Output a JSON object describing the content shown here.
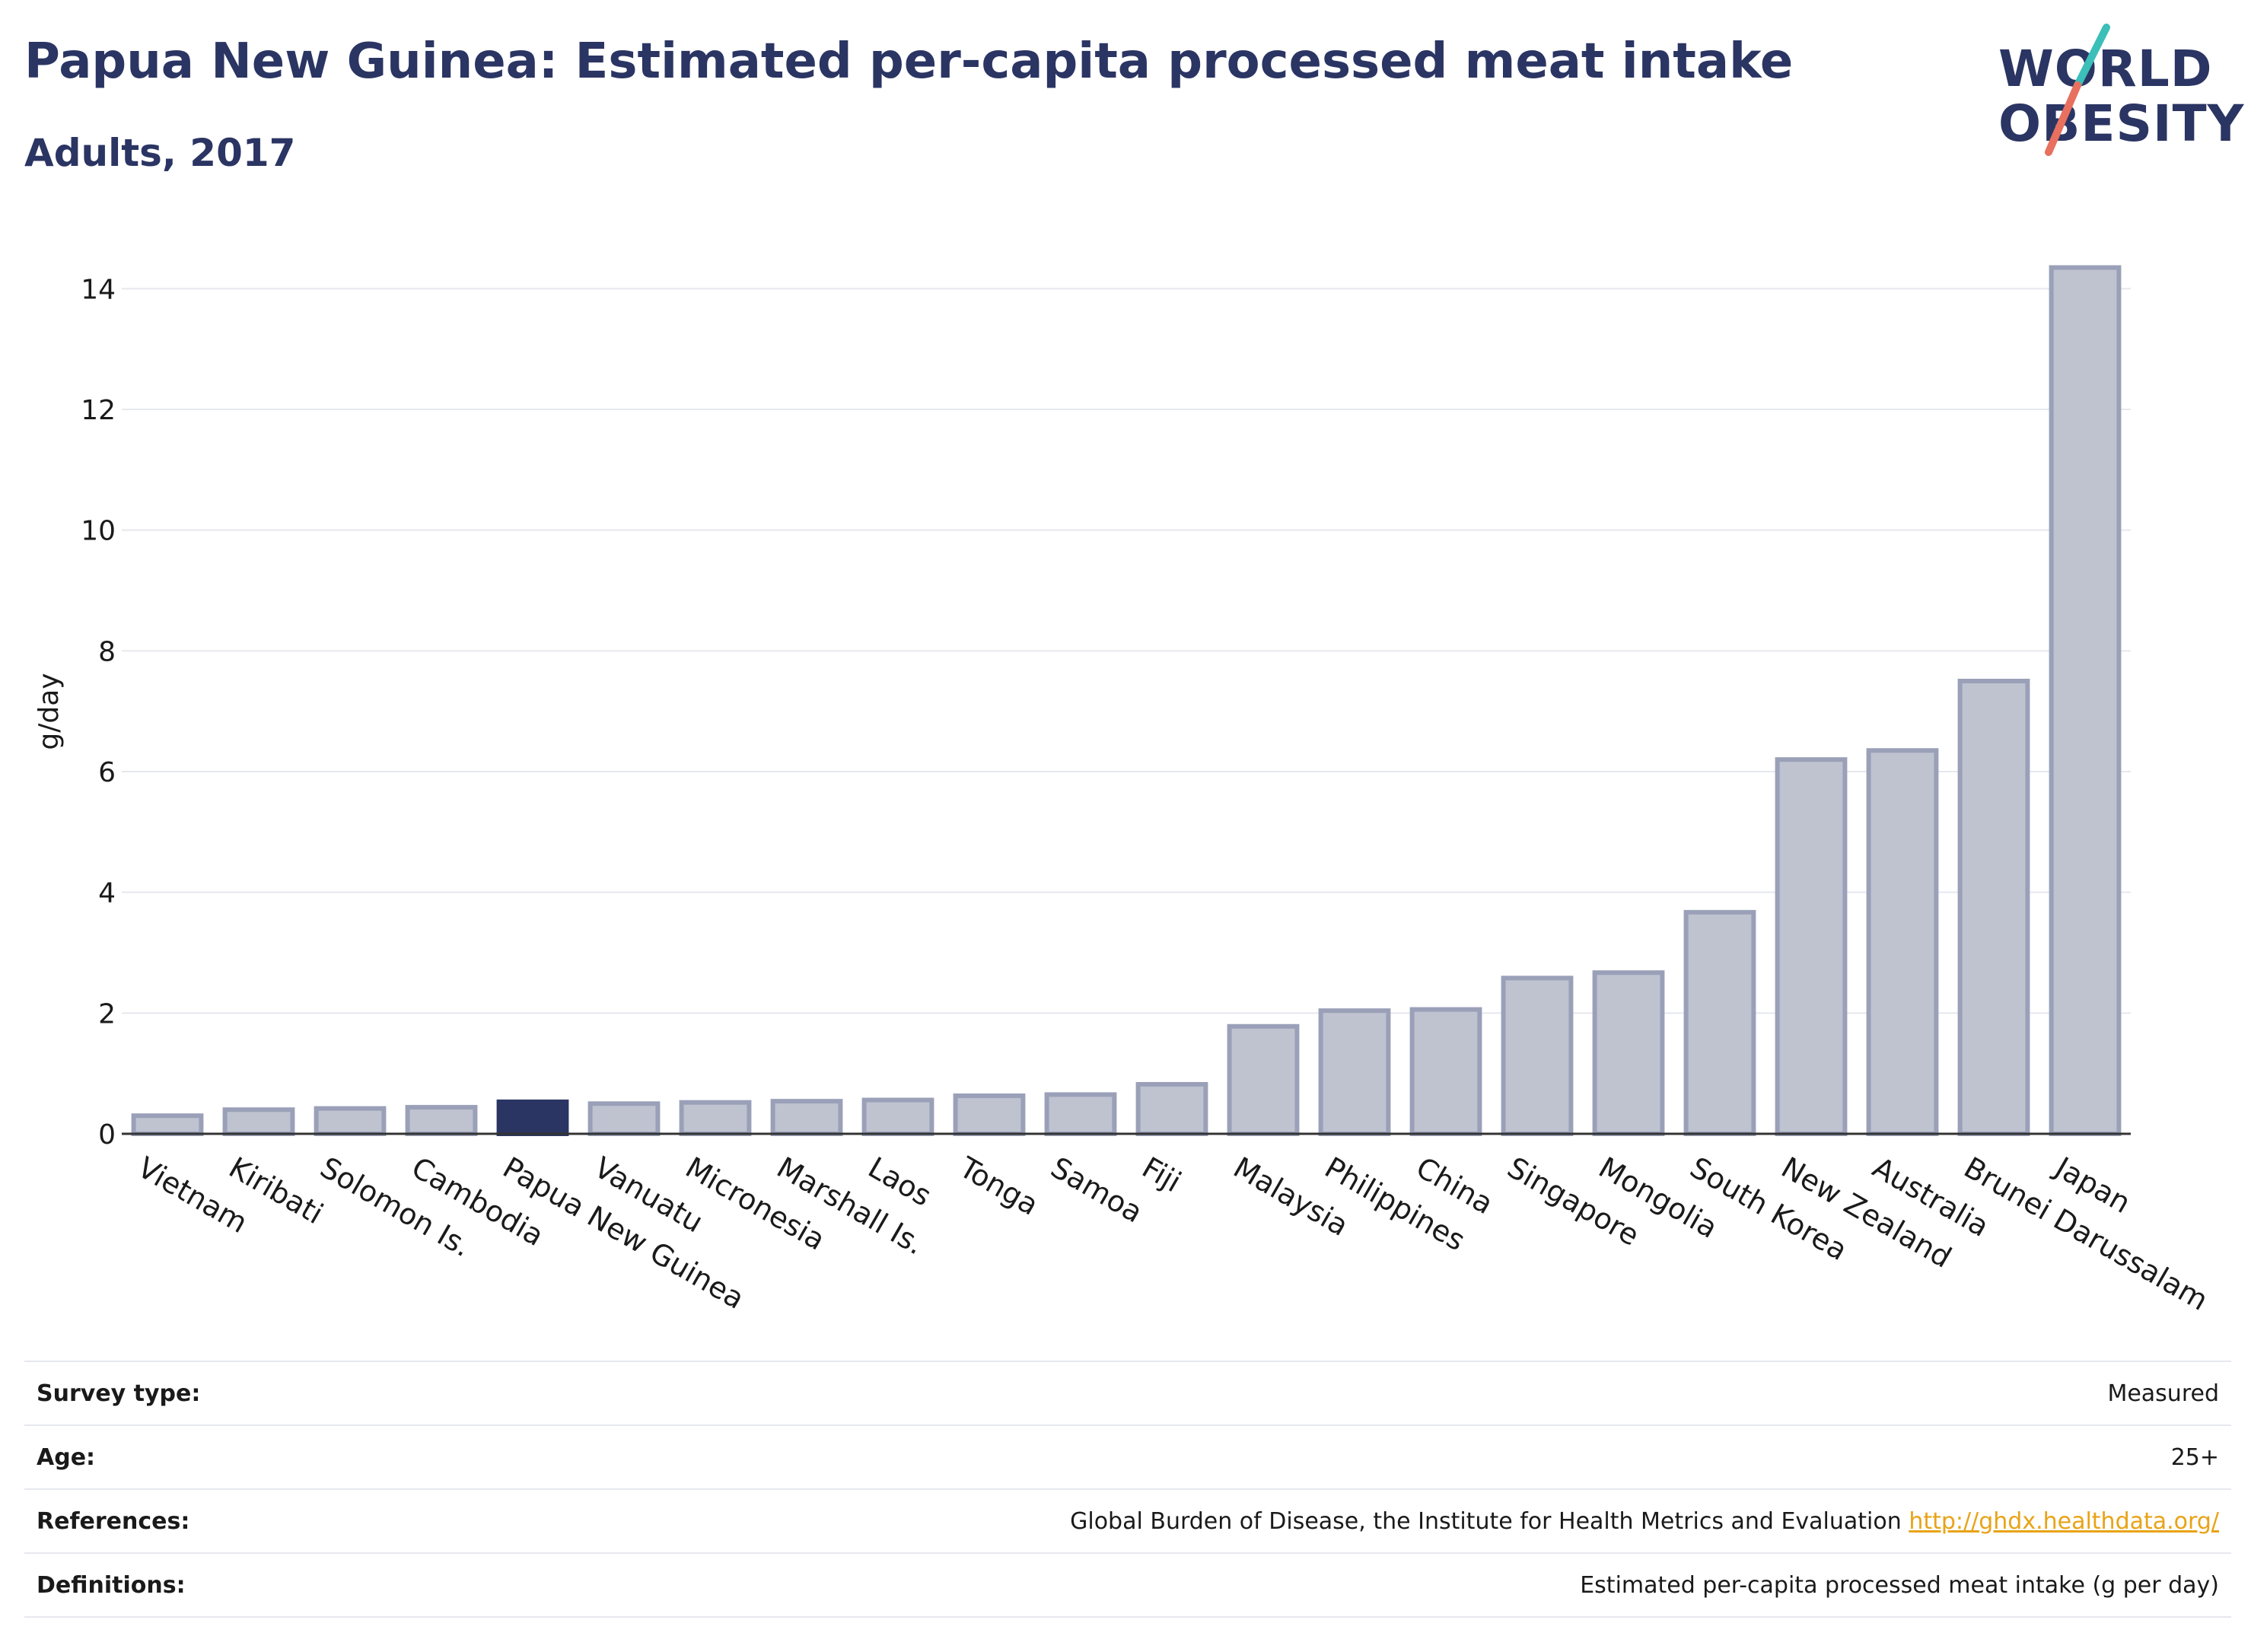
{
  "header": {
    "title": "Papua New Guinea: Estimated per-capita processed meat intake",
    "subtitle": "Adults, 2017"
  },
  "logo": {
    "line1": "WORLD",
    "line2": "OBESITY",
    "colors": {
      "text": "#2b3563",
      "slash_teal": "#3bbfb8",
      "slash_red": "#e8705f"
    }
  },
  "colors": {
    "highlight_bar": "#2b3563",
    "bar_fill": "#bfc3d0",
    "bar_stroke": "#9aa0b8",
    "grid": "#e6e8ef",
    "link": "#e8a317"
  },
  "chart_data": {
    "type": "bar",
    "title": "Papua New Guinea: Estimated per-capita processed meat intake",
    "subtitle": "Adults, 2017",
    "xlabel": "",
    "ylabel": "g/day",
    "ylim": [
      0,
      15
    ],
    "yticks": [
      0,
      2,
      4,
      6,
      8,
      10,
      12,
      14
    ],
    "grid": true,
    "highlight": "Papua New Guinea",
    "categories": [
      "Vietnam",
      "Kiribati",
      "Solomon Is.",
      "Cambodia",
      "Papua New Guinea",
      "Vanuatu",
      "Micronesia",
      "Marshall Is.",
      "Laos",
      "Tonga",
      "Samoa",
      "Fiji",
      "Malaysia",
      "Philippines",
      "China",
      "Singapore",
      "Mongolia",
      "South Korea",
      "New Zealand",
      "Australia",
      "Brunei Darussalam",
      "Japan"
    ],
    "values": [
      0.3,
      0.4,
      0.42,
      0.44,
      0.53,
      0.5,
      0.52,
      0.54,
      0.56,
      0.63,
      0.65,
      0.82,
      1.78,
      2.04,
      2.06,
      2.58,
      2.67,
      3.67,
      6.2,
      6.35,
      7.5,
      14.35
    ]
  },
  "table": {
    "rows": [
      {
        "label": "Survey type:",
        "value": "Measured"
      },
      {
        "label": "Age:",
        "value": "25+"
      },
      {
        "label": "References:",
        "value": "Global Burden of Disease, the Institute for Health Metrics and Evaluation",
        "link": "http://ghdx.healthdata.org/"
      },
      {
        "label": "Definitions:",
        "value": "Estimated per-capita processed meat intake (g per day)"
      }
    ]
  }
}
